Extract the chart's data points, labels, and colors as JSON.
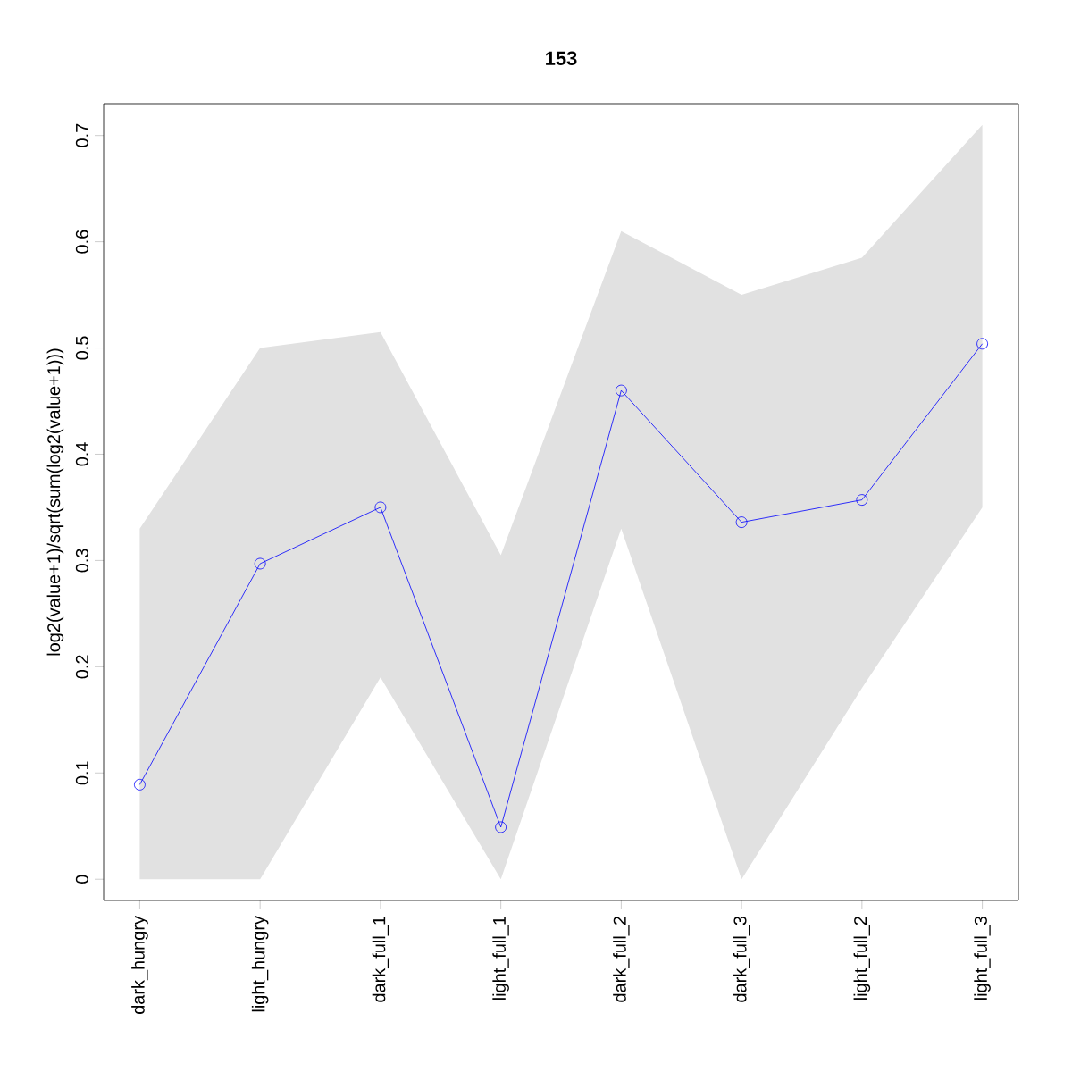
{
  "chart_data": {
    "type": "line",
    "title": "153",
    "ylabel": "log2(value+1)/sqrt(sum(log2(value+1)))",
    "categories": [
      "dark_hungry",
      "light_hungry",
      "dark_full_1",
      "light_full_1",
      "dark_full_2",
      "dark_full_3",
      "light_full_2",
      "light_full_3"
    ],
    "series": [
      {
        "color": "#0000ff",
        "values": [
          0.089,
          0.297,
          0.35,
          0.049,
          0.46,
          0.336,
          0.357,
          0.504
        ],
        "lower": [
          0.0,
          0.0,
          0.19,
          0.0,
          0.33,
          0.0,
          0.18,
          0.35
        ],
        "upper": [
          0.33,
          0.5,
          0.515,
          0.305,
          0.61,
          0.55,
          0.585,
          0.71
        ]
      }
    ],
    "ylim": [
      -0.02,
      0.73
    ],
    "yticks": [
      0,
      0.1,
      0.2,
      0.3,
      0.4,
      0.5,
      0.6,
      0.7
    ],
    "marker": "circle",
    "line_style": "solid",
    "grid": false
  }
}
